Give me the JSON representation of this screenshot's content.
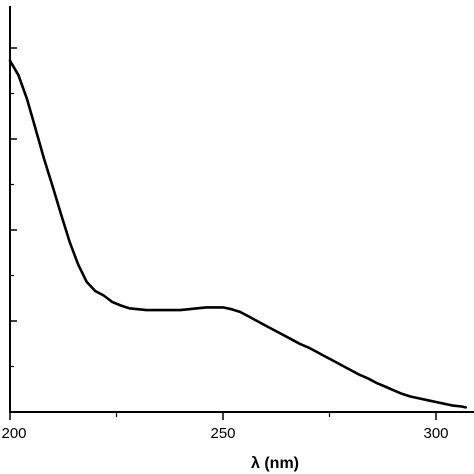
{
  "chart_data": {
    "type": "line",
    "title": "",
    "xlabel": "λ (nm)",
    "ylabel": "",
    "xlim": [
      200,
      307
    ],
    "ylim": [
      0,
      4.0
    ],
    "x_ticks_major": [
      200,
      250,
      300
    ],
    "x_ticks_minor": [
      225,
      275
    ],
    "x_tick_labels": [
      "200",
      "250",
      "300"
    ],
    "y_ticks_major": [
      1.0,
      2.0,
      3.0,
      4.0
    ],
    "y_ticks_minor": [
      0.5,
      1.5,
      2.5,
      3.5
    ],
    "grid": false,
    "series": [
      {
        "color": "#000000",
        "x": [
          200,
          202,
          204,
          206,
          208,
          210,
          212,
          214,
          216,
          218,
          220,
          222,
          224,
          226,
          228,
          230,
          232,
          234,
          236,
          238,
          240,
          242,
          244,
          246,
          248,
          250,
          252,
          254,
          256,
          258,
          260,
          262,
          264,
          266,
          268,
          270,
          272,
          274,
          276,
          278,
          280,
          282,
          284,
          286,
          288,
          290,
          292,
          294,
          296,
          298,
          300,
          302,
          304,
          306,
          307
        ],
        "y": [
          3.86,
          3.7,
          3.44,
          3.11,
          2.78,
          2.48,
          2.17,
          1.87,
          1.62,
          1.43,
          1.33,
          1.28,
          1.21,
          1.17,
          1.14,
          1.13,
          1.12,
          1.12,
          1.12,
          1.12,
          1.12,
          1.13,
          1.14,
          1.15,
          1.15,
          1.15,
          1.13,
          1.1,
          1.05,
          1.0,
          0.95,
          0.9,
          0.85,
          0.8,
          0.75,
          0.71,
          0.66,
          0.61,
          0.56,
          0.51,
          0.46,
          0.41,
          0.37,
          0.32,
          0.28,
          0.24,
          0.2,
          0.17,
          0.15,
          0.13,
          0.11,
          0.09,
          0.07,
          0.06,
          0.05
        ]
      }
    ]
  }
}
